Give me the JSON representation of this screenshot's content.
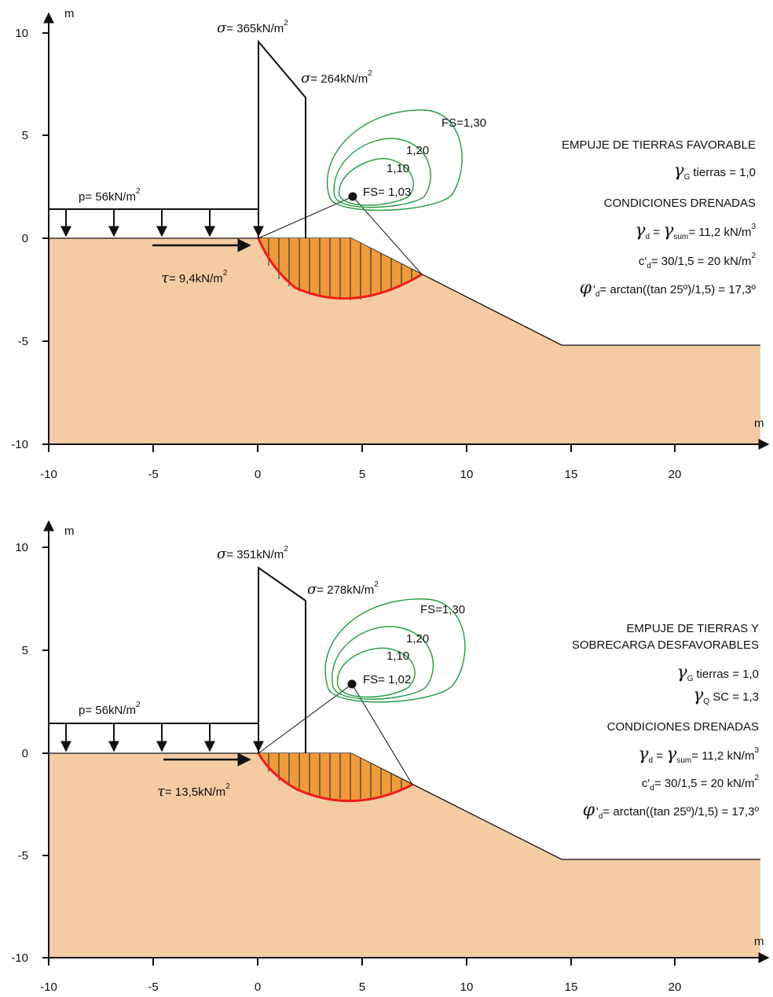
{
  "panels": [
    {
      "y_unit": "m",
      "x_unit": "m",
      "x_ticks": [
        "-10",
        "-5",
        "0",
        "5",
        "10",
        "15",
        "20"
      ],
      "y_ticks": [
        "10",
        "5",
        "0",
        "-5",
        "-10"
      ],
      "sigma_left": "= 365kN/m",
      "sigma_right": "= 264kN/m",
      "sigma_sq": "2",
      "p_label": "p= 56kN/m",
      "tau_label": "= 9,4kN/m",
      "fs_labels": [
        "FS=1,30",
        "1,20",
        "1,10",
        "FS= 1,03"
      ],
      "sigma_left_value_kNm2": 365,
      "sigma_right_value_kNm2": 264,
      "fs_min": 1.03,
      "notes": {
        "title_lines": [
          "EMPUJE DE TIERRAS FAVORABLE"
        ],
        "gamma_g": "tierras = 1,0",
        "gamma_q": "",
        "drained": "CONDICIONES DRENADAS",
        "gamma_d": "= 11,2 kN/m",
        "cd": "= 30/1,5 = 20 kN/m",
        "phi": "= arctan((tan 25º)/1,5) = 17,3º"
      }
    },
    {
      "y_unit": "m",
      "x_unit": "m",
      "x_ticks": [
        "-10",
        "-5",
        "0",
        "5",
        "10",
        "15",
        "20"
      ],
      "y_ticks": [
        "10",
        "5",
        "0",
        "-5",
        "-10"
      ],
      "sigma_left": "= 351kN/m",
      "sigma_right": "= 278kN/m",
      "sigma_sq": "2",
      "p_label": "p= 56kN/m",
      "tau_label": "= 13,5kN/m",
      "fs_labels": [
        "FS=1,30",
        "1,20",
        "1,10",
        "FS= 1,02"
      ],
      "sigma_left_value_kNm2": 351,
      "sigma_right_value_kNm2": 278,
      "fs_min": 1.02,
      "notes": {
        "title_lines": [
          "EMPUJE DE TIERRAS Y",
          "SOBRECARGA DESFAVORABLES"
        ],
        "gamma_g": "tierras = 1,0",
        "gamma_q": "SC = 1,3",
        "drained": "CONDICIONES DRENADAS",
        "gamma_d": "= 11,2 kN/m",
        "cd": "= 30/1,5 = 20 kN/m",
        "phi": "= arctan((tan 25º)/1,5) = 17,3º"
      }
    }
  ],
  "symbols": {
    "sigma": "σ",
    "tau": "τ",
    "gamma": "γ",
    "phi": "φ",
    "sub_g": "G",
    "sub_q": "Q",
    "sub_d": "d",
    "sub_sum": "sum",
    "c_d": "c'",
    "sup_2": "2",
    "sup_3": "3"
  },
  "colors": {
    "soil": "#f4cba3",
    "wedge": "#ef9a3c",
    "slip_surface": "#ee1c1c",
    "fs_contours": "#1f9a3a",
    "ink": "#111111"
  }
}
